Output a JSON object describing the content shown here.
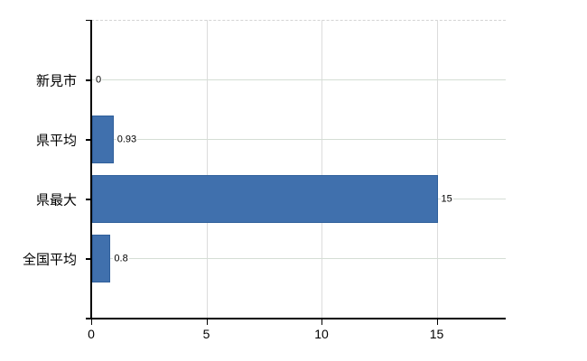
{
  "chart_data": {
    "type": "bar",
    "orientation": "horizontal",
    "categories": [
      "新見市",
      "県平均",
      "県最大",
      "全国平均"
    ],
    "values": [
      0,
      0.93,
      15,
      0.8
    ],
    "value_labels": [
      "0",
      "0.93",
      "15",
      "0.8"
    ],
    "xticks": [
      "0",
      "5",
      "10",
      "15"
    ],
    "xtick_values": [
      0,
      5,
      10,
      15
    ],
    "xlim": [
      0,
      18
    ],
    "grid": true,
    "legend_position": "none",
    "title": "",
    "xlabel": "",
    "ylabel": "",
    "colors": {
      "bar_fill": "#4070ad",
      "bar_border": "#2f5f9b",
      "axis": "#000000",
      "h_gridline": "#d5ded5",
      "v_gridline": "#dcdcdc",
      "plot_top_border": "#d3d3d3",
      "background": "#ffffff",
      "text": "#000000"
    }
  }
}
